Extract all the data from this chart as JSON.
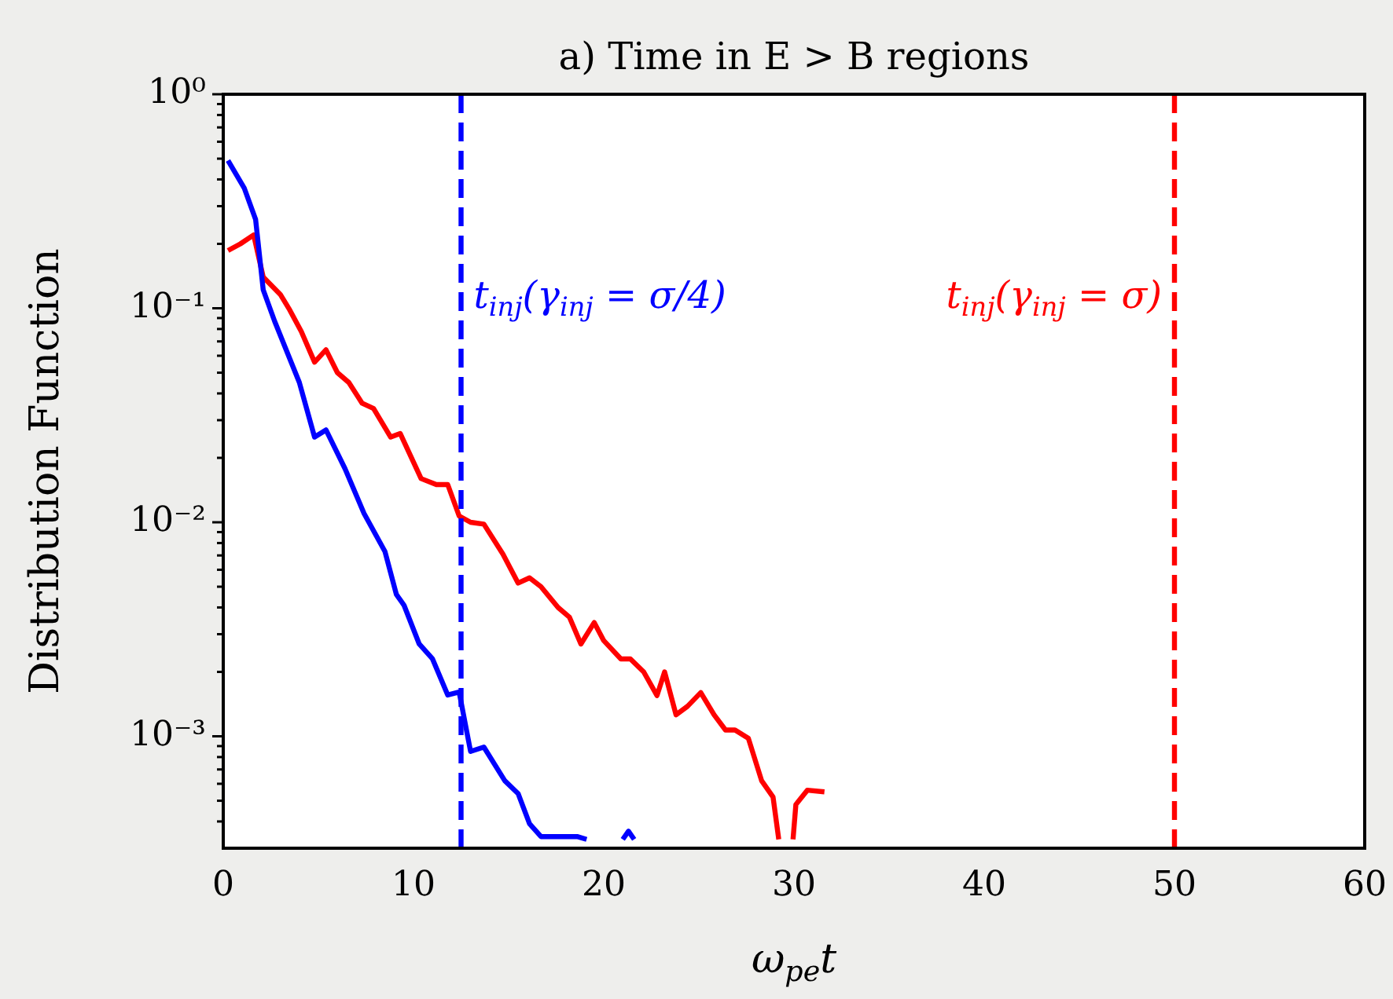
{
  "chart_data": {
    "type": "line",
    "title": "a) Time in E > B regions",
    "xlabel": "ω$_{pe}$t",
    "ylabel": "Distribution Function",
    "xlim": [
      0,
      60
    ],
    "xticks": [
      0,
      10,
      20,
      30,
      40,
      50,
      60
    ],
    "ylim": [
      0.000316,
      1
    ],
    "log": "y",
    "grid": false,
    "legend": false,
    "line_style": "solid",
    "marker": "none",
    "yticks": [
      {
        "value": 0.0004,
        "label": null
      },
      {
        "value": 0.0005,
        "label": null
      },
      {
        "value": 0.0006,
        "label": null
      },
      {
        "value": 0.0007,
        "label": null
      },
      {
        "value": 0.0008,
        "label": null
      },
      {
        "value": 0.0009,
        "label": null
      },
      {
        "value": 0.001,
        "label": "10⁻³"
      },
      {
        "value": 0.002,
        "label": null
      },
      {
        "value": 0.003,
        "label": null
      },
      {
        "value": 0.004,
        "label": null
      },
      {
        "value": 0.005,
        "label": null
      },
      {
        "value": 0.006,
        "label": null
      },
      {
        "value": 0.007,
        "label": null
      },
      {
        "value": 0.008,
        "label": null
      },
      {
        "value": 0.009,
        "label": null
      },
      {
        "value": 0.01,
        "label": "10⁻²"
      },
      {
        "value": 0.02,
        "label": null
      },
      {
        "value": 0.03,
        "label": null
      },
      {
        "value": 0.04,
        "label": null
      },
      {
        "value": 0.05,
        "label": null
      },
      {
        "value": 0.06,
        "label": null
      },
      {
        "value": 0.07,
        "label": null
      },
      {
        "value": 0.08,
        "label": null
      },
      {
        "value": 0.09,
        "label": null
      },
      {
        "value": 0.1,
        "label": "10⁻¹"
      },
      {
        "value": 0.2,
        "label": null
      },
      {
        "value": 0.3,
        "label": null
      },
      {
        "value": 0.4,
        "label": null
      },
      {
        "value": 0.5,
        "label": null
      },
      {
        "value": 0.6,
        "label": null
      },
      {
        "value": 0.7,
        "label": null
      },
      {
        "value": 0.8,
        "label": null
      },
      {
        "value": 0.9,
        "label": null
      },
      {
        "value": 1,
        "label": "10⁰"
      }
    ],
    "series": [
      {
        "color": "#0000ff",
        "x": [
          0.25,
          1.1,
          1.7,
          2.1,
          2.7,
          4.0,
          4.8,
          5.4,
          6.4,
          7.4,
          8.5,
          9.1,
          9.5,
          10.3,
          11.0,
          11.8,
          12.4,
          13.0,
          13.7,
          14.8,
          15.5,
          16.1,
          16.7,
          18.6,
          19.1,
          20.2,
          21.0,
          21.3,
          21.6
        ],
        "values": [
          0.49,
          0.365,
          0.26,
          0.122,
          0.087,
          0.045,
          0.025,
          0.027,
          0.0178,
          0.011,
          0.0073,
          0.0046,
          0.0041,
          0.0027,
          0.0023,
          0.00156,
          0.00161,
          0.00085,
          0.00089,
          0.00062,
          0.00054,
          0.00039,
          0.00034,
          0.00034,
          0.00033,
          null,
          0.00033,
          0.00036,
          0.00033
        ]
      },
      {
        "color": "#ff0000",
        "x": [
          0.25,
          0.9,
          1.6,
          2.1,
          3.0,
          3.5,
          4.1,
          4.8,
          5.4,
          6.0,
          6.6,
          7.3,
          7.9,
          8.8,
          9.3,
          10.4,
          11.2,
          11.8,
          12.4,
          13.0,
          13.7,
          14.7,
          15.5,
          16.1,
          16.7,
          17.6,
          18.2,
          18.8,
          19.5,
          20.0,
          20.9,
          21.4,
          22.1,
          22.8,
          23.2,
          23.8,
          24.4,
          25.1,
          25.8,
          26.4,
          26.9,
          27.6,
          28.3,
          28.9,
          29.2,
          29.6,
          29.95,
          30.1,
          30.7,
          31.6
        ],
        "values": [
          0.186,
          0.2,
          0.22,
          0.14,
          0.116,
          0.098,
          0.078,
          0.056,
          0.064,
          0.05,
          0.045,
          0.036,
          0.034,
          0.025,
          0.026,
          0.016,
          0.015,
          0.015,
          0.0107,
          0.01,
          0.0098,
          0.0071,
          0.0052,
          0.0055,
          0.005,
          0.004,
          0.0036,
          0.0027,
          0.0034,
          0.0028,
          0.0023,
          0.0023,
          0.002,
          0.00155,
          0.002,
          0.00126,
          0.00138,
          0.0016,
          0.00126,
          0.00107,
          0.00107,
          0.00098,
          0.00062,
          0.00052,
          0.00033,
          null,
          0.00033,
          0.00048,
          0.00056,
          0.00055
        ]
      }
    ],
    "ref_lines": [
      {
        "axis": "x",
        "value": 12.5,
        "label": "t$_{inj}$(γ$_{inj}$ = σ/4)",
        "color": "#0000ff",
        "line_style": "dashed"
      },
      {
        "axis": "x",
        "value": 50,
        "label": "t$_{inj}$(γ$_{inj}$ = σ)",
        "color": "#ff0000",
        "line_style": "dashed"
      }
    ]
  }
}
